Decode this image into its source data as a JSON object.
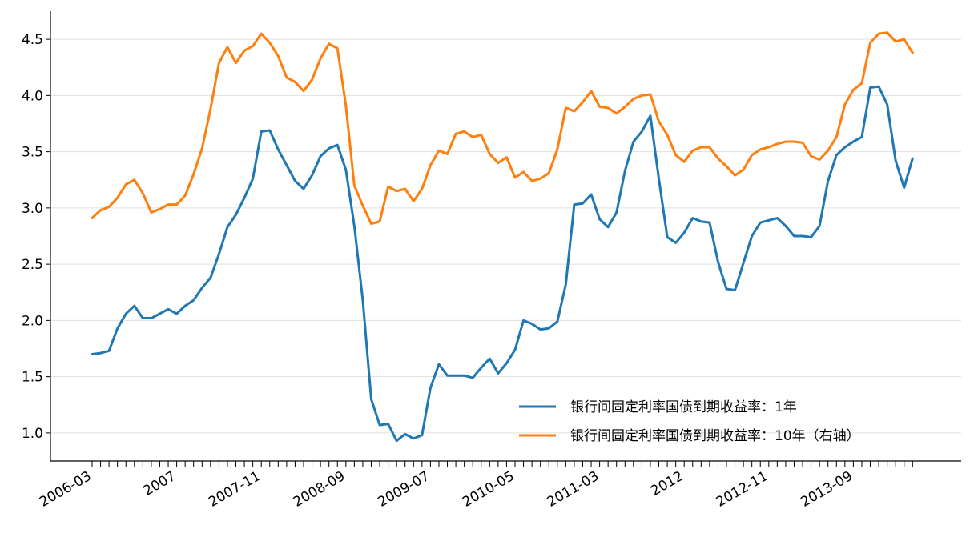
{
  "chart_data": {
    "type": "line",
    "title": "",
    "xlabel": "",
    "ylabel": "",
    "ylim": [
      0.75,
      4.75
    ],
    "yticks": [
      "1.0",
      "1.5",
      "2.0",
      "2.5",
      "3.0",
      "3.5",
      "4.0",
      "4.5"
    ],
    "grid": "horizontal",
    "legend_position": "bottom-right",
    "x_start": "2006-03",
    "x_end": "2014-07",
    "x_tick_labels": [
      {
        "label": "2006-03",
        "month_index": 0
      },
      {
        "label": "2007",
        "month_index": 10
      },
      {
        "label": "2007-11",
        "month_index": 20
      },
      {
        "label": "2008-09",
        "month_index": 30
      },
      {
        "label": "2009-07",
        "month_index": 40
      },
      {
        "label": "2010-05",
        "month_index": 50
      },
      {
        "label": "2011-03",
        "month_index": 60
      },
      {
        "label": "2012",
        "month_index": 70
      },
      {
        "label": "2012-11",
        "month_index": 80
      },
      {
        "label": "2013-09",
        "month_index": 90
      }
    ],
    "series": [
      {
        "name": "银行间固定利率国债到期收益率：1年",
        "color": "#1f77b4",
        "values": [
          1.7,
          1.71,
          1.73,
          1.93,
          2.06,
          2.13,
          2.02,
          2.02,
          2.06,
          2.1,
          2.06,
          2.13,
          2.18,
          2.29,
          2.38,
          2.59,
          2.83,
          2.94,
          3.09,
          3.26,
          3.68,
          3.69,
          3.52,
          3.38,
          3.24,
          3.17,
          3.29,
          3.46,
          3.53,
          3.56,
          3.34,
          2.84,
          2.18,
          1.3,
          1.07,
          1.08,
          0.93,
          0.99,
          0.95,
          0.98,
          1.4,
          1.61,
          1.51,
          1.51,
          1.51,
          1.49,
          1.58,
          1.66,
          1.53,
          1.62,
          1.74,
          2.0,
          1.97,
          1.92,
          1.93,
          1.99,
          2.32,
          3.03,
          3.04,
          3.12,
          2.9,
          2.83,
          2.96,
          3.33,
          3.59,
          3.68,
          3.82,
          3.26,
          2.74,
          2.69,
          2.78,
          2.91,
          2.88,
          2.87,
          2.52,
          2.28,
          2.27,
          2.51,
          2.75,
          2.87,
          2.89,
          2.91,
          2.84,
          2.75,
          2.75,
          2.74,
          2.84,
          3.24,
          3.47,
          3.54,
          3.59,
          3.63,
          4.07,
          4.08,
          3.92,
          3.42,
          3.18,
          3.44
        ]
      },
      {
        "name": "银行间固定利率国债到期收益率：10年（右轴）",
        "color": "#ff7f0e",
        "values": [
          2.91,
          2.98,
          3.01,
          3.09,
          3.21,
          3.25,
          3.13,
          2.96,
          2.99,
          3.03,
          3.03,
          3.11,
          3.3,
          3.53,
          3.88,
          4.29,
          4.43,
          4.29,
          4.4,
          4.44,
          4.55,
          4.47,
          4.35,
          4.16,
          4.12,
          4.04,
          4.14,
          4.33,
          4.46,
          4.42,
          3.91,
          3.2,
          3.02,
          2.86,
          2.88,
          3.19,
          3.15,
          3.17,
          3.06,
          3.17,
          3.38,
          3.51,
          3.48,
          3.66,
          3.68,
          3.63,
          3.65,
          3.48,
          3.4,
          3.45,
          3.27,
          3.32,
          3.24,
          3.26,
          3.31,
          3.52,
          3.89,
          3.86,
          3.94,
          4.04,
          3.9,
          3.89,
          3.84,
          3.9,
          3.97,
          4.0,
          4.01,
          3.77,
          3.65,
          3.47,
          3.41,
          3.51,
          3.54,
          3.54,
          3.44,
          3.37,
          3.29,
          3.34,
          3.47,
          3.52,
          3.54,
          3.57,
          3.59,
          3.59,
          3.58,
          3.46,
          3.43,
          3.51,
          3.63,
          3.92,
          4.05,
          4.11,
          4.47,
          4.55,
          4.56,
          4.48,
          4.5,
          4.38
        ]
      }
    ]
  }
}
